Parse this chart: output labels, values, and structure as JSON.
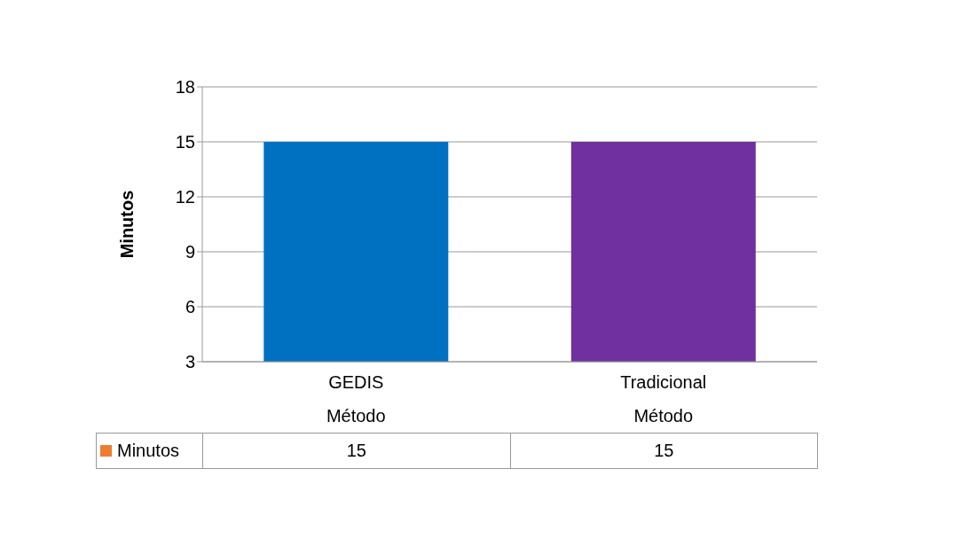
{
  "chart_data": {
    "type": "bar",
    "ylabel": "Minutos",
    "categories": [
      "GEDIS Método",
      "Tradicional Método"
    ],
    "series": [
      {
        "name": "Minutos",
        "color": "#ed7d31",
        "colors": [
          "#0070c0",
          "#7030a0"
        ],
        "values": [
          15,
          15
        ]
      }
    ],
    "ylim": [
      3,
      18
    ],
    "yticks": [
      3,
      6,
      9,
      12,
      15,
      18
    ],
    "grid": "y",
    "legend": "bottom left",
    "data_labels": true
  }
}
